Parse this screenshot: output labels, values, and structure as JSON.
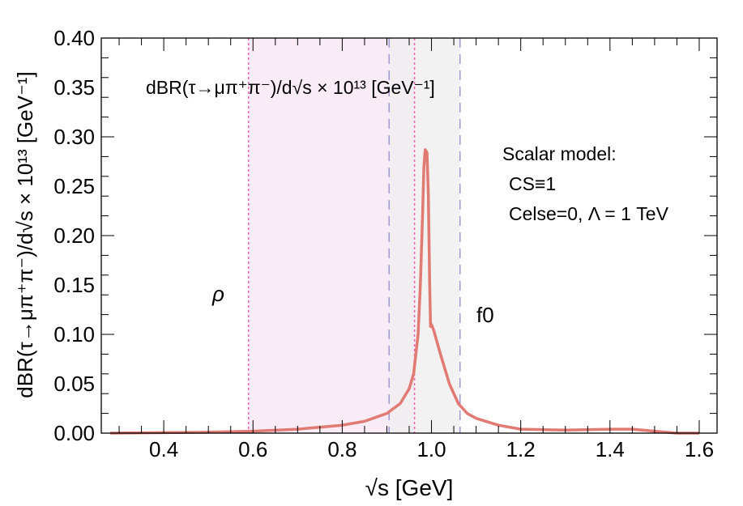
{
  "chart_data": {
    "type": "line",
    "title": "",
    "xlabel": "√s [GeV]",
    "ylabel": "dBR(τ→μπ⁺π⁻)/d√s × 10¹³ [GeV⁻¹]",
    "xlim": [
      0.26,
      1.64
    ],
    "ylim": [
      0,
      0.4
    ],
    "x_ticks": [
      "0.4",
      "0.6",
      "0.8",
      "1.0",
      "1.2",
      "1.4",
      "1.6"
    ],
    "y_ticks": [
      "0.00",
      "0.05",
      "0.10",
      "0.15",
      "0.20",
      "0.25",
      "0.30",
      "0.35",
      "0.40"
    ],
    "grid": false,
    "series": [
      {
        "name": "dBR",
        "color": "#e07a72",
        "x": [
          0.28,
          0.35,
          0.4,
          0.5,
          0.6,
          0.7,
          0.8,
          0.85,
          0.9,
          0.93,
          0.95,
          0.96,
          0.97,
          0.975,
          0.98,
          0.983,
          0.986,
          0.99,
          0.993,
          0.996,
          0.998,
          1.0,
          1.005,
          1.02,
          1.04,
          1.06,
          1.08,
          1.1,
          1.15,
          1.2,
          1.3,
          1.4,
          1.45,
          1.5,
          1.55,
          1.6
        ],
        "y": [
          0,
          0.0003,
          0.0005,
          0.001,
          0.002,
          0.004,
          0.008,
          0.012,
          0.02,
          0.03,
          0.045,
          0.06,
          0.1,
          0.15,
          0.22,
          0.27,
          0.287,
          0.284,
          0.24,
          0.15,
          0.108,
          0.11,
          0.104,
          0.08,
          0.05,
          0.03,
          0.02,
          0.015,
          0.008,
          0.004,
          0.003,
          0.004,
          0.004,
          0.002,
          0.0,
          0.0
        ]
      }
    ],
    "bands": [
      {
        "name": "rho-band",
        "from": 0.59,
        "to": 0.962,
        "color": "#f7e6f4"
      },
      {
        "name": "f0-band",
        "from": 0.905,
        "to": 1.064,
        "color": "#eeeeee"
      }
    ],
    "vlines": [
      {
        "x": 0.59,
        "style": "dotted",
        "color": "#ee5fb0"
      },
      {
        "x": 0.962,
        "style": "dotted",
        "color": "#ee5fb0"
      },
      {
        "x": 0.905,
        "style": "dashed",
        "color": "#9a9ad6"
      },
      {
        "x": 1.064,
        "style": "dashed",
        "color": "#9a9ad6"
      }
    ],
    "annotations": {
      "inset_title": "dBR(τ→μπ⁺π⁻)/d√s × 10¹³ [GeV⁻¹]",
      "rho": "ρ",
      "f0": "f0",
      "model_line1": "Scalar model:",
      "model_line2": "CS≡1",
      "model_line3": "Celse=0, Λ = 1 TeV"
    }
  }
}
